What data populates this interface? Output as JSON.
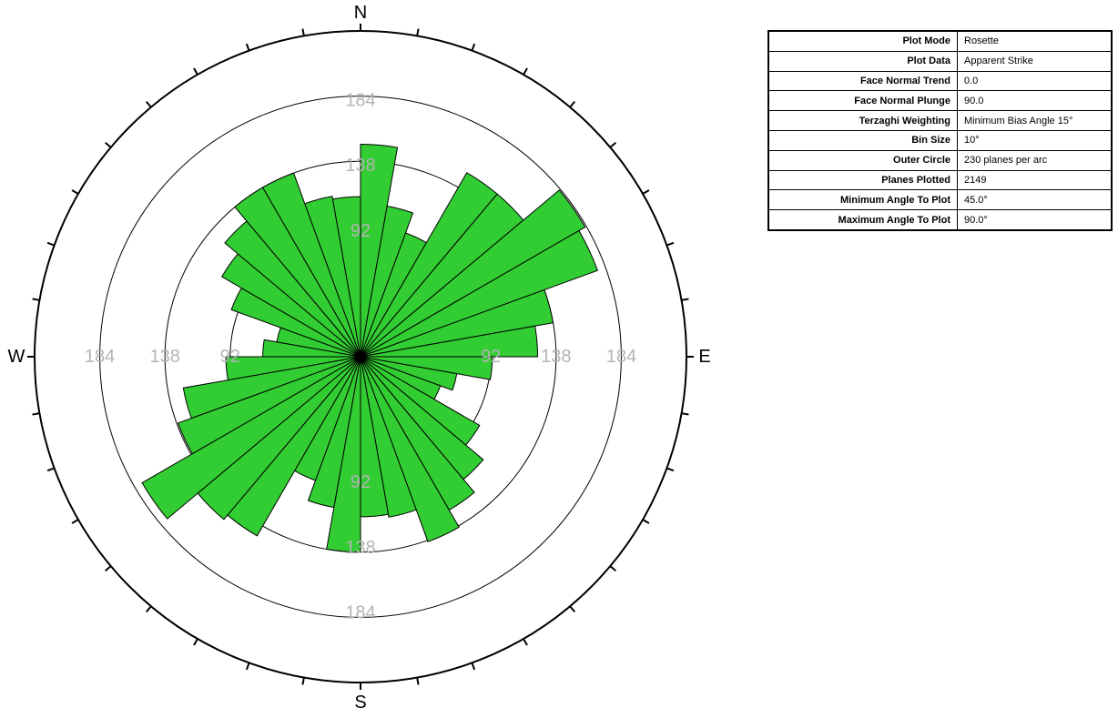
{
  "chart_data": {
    "type": "rose",
    "bin_size_deg": 10,
    "outer_circle": 230,
    "rings": [
      92,
      138,
      184
    ],
    "compass": {
      "north": "N",
      "east": "E",
      "south": "S",
      "west": "W"
    },
    "bins": [
      {
        "from": 0,
        "to": 10,
        "value": 150
      },
      {
        "from": 10,
        "to": 20,
        "value": 108
      },
      {
        "from": 20,
        "to": 30,
        "value": 93
      },
      {
        "from": 30,
        "to": 40,
        "value": 150
      },
      {
        "from": 40,
        "to": 50,
        "value": 150
      },
      {
        "from": 50,
        "to": 60,
        "value": 183
      },
      {
        "from": 60,
        "to": 70,
        "value": 178
      },
      {
        "from": 70,
        "to": 80,
        "value": 138
      },
      {
        "from": 80,
        "to": 90,
        "value": 125
      },
      {
        "from": 90,
        "to": 100,
        "value": 93
      },
      {
        "from": 100,
        "to": 110,
        "value": 69
      },
      {
        "from": 110,
        "to": 120,
        "value": 60
      },
      {
        "from": 120,
        "to": 130,
        "value": 97
      },
      {
        "from": 130,
        "to": 140,
        "value": 113
      },
      {
        "from": 140,
        "to": 150,
        "value": 125
      },
      {
        "from": 150,
        "to": 160,
        "value": 139
      },
      {
        "from": 160,
        "to": 170,
        "value": 115
      },
      {
        "from": 170,
        "to": 180,
        "value": 113
      },
      {
        "from": 180,
        "to": 190,
        "value": 138
      },
      {
        "from": 190,
        "to": 200,
        "value": 108
      },
      {
        "from": 200,
        "to": 210,
        "value": 93
      },
      {
        "from": 210,
        "to": 220,
        "value": 146
      },
      {
        "from": 220,
        "to": 230,
        "value": 150
      },
      {
        "from": 230,
        "to": 240,
        "value": 178
      },
      {
        "from": 240,
        "to": 250,
        "value": 137
      },
      {
        "from": 250,
        "to": 260,
        "value": 127
      },
      {
        "from": 260,
        "to": 270,
        "value": 95
      },
      {
        "from": 270,
        "to": 280,
        "value": 69
      },
      {
        "from": 280,
        "to": 290,
        "value": 60
      },
      {
        "from": 290,
        "to": 300,
        "value": 97
      },
      {
        "from": 300,
        "to": 310,
        "value": 113
      },
      {
        "from": 310,
        "to": 320,
        "value": 125
      },
      {
        "from": 320,
        "to": 330,
        "value": 138
      },
      {
        "from": 330,
        "to": 340,
        "value": 138
      },
      {
        "from": 340,
        "to": 350,
        "value": 115
      },
      {
        "from": 350,
        "to": 360,
        "value": 113
      }
    ],
    "colors": {
      "petal": "#32cd32",
      "outline": "#000000",
      "ring_label": "#b4b4b4"
    }
  },
  "info_table": [
    {
      "key": "Plot Mode",
      "value": "Rosette"
    },
    {
      "key": "Plot Data",
      "value": "Apparent Strike"
    },
    {
      "key": "Face Normal Trend",
      "value": "0.0"
    },
    {
      "key": "Face Normal Plunge",
      "value": "90.0"
    },
    {
      "key": "Terzaghi Weighting",
      "value": "Minimum Bias Angle 15°"
    },
    {
      "key": "Bin Size",
      "value": "10°"
    },
    {
      "key": "Outer Circle",
      "value": "230 planes per arc"
    },
    {
      "key": "Planes Plotted",
      "value": "2149"
    },
    {
      "key": "Minimum Angle To Plot",
      "value": "45.0°"
    },
    {
      "key": "Maximum Angle To Plot",
      "value": "90.0°"
    }
  ]
}
